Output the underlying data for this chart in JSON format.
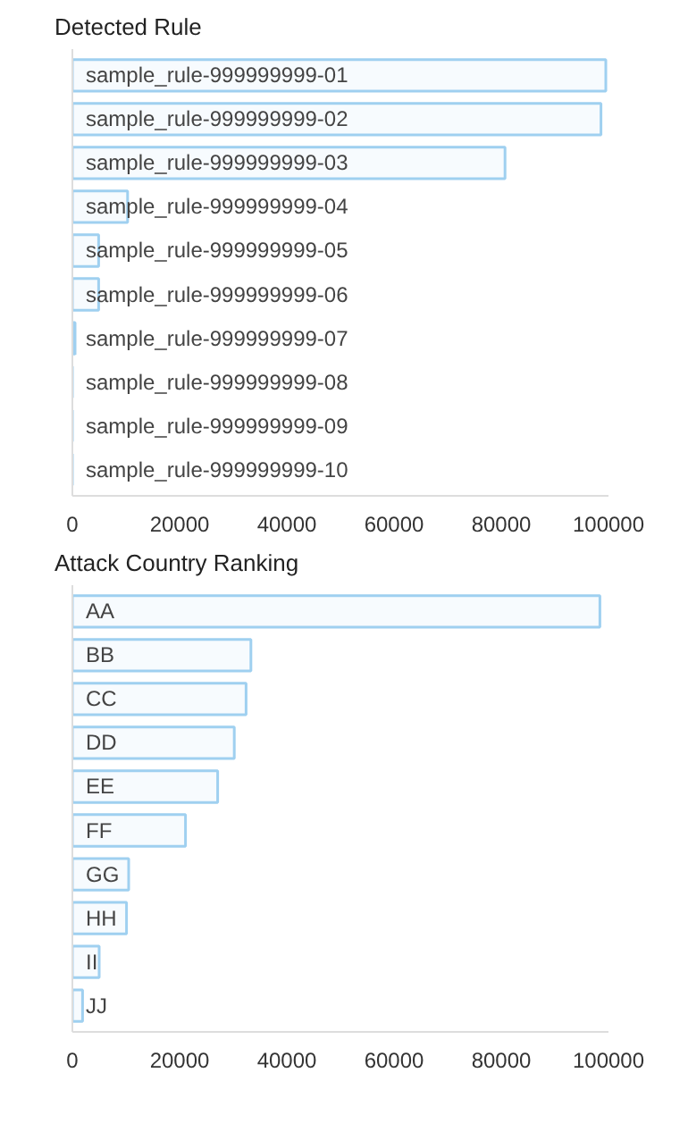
{
  "chart_data": [
    {
      "type": "bar",
      "orientation": "horizontal",
      "title": "Detected Rule",
      "categories": [
        "sample_rule-999999999-01",
        "sample_rule-999999999-02",
        "sample_rule-999999999-03",
        "sample_rule-999999999-04",
        "sample_rule-999999999-05",
        "sample_rule-999999999-06",
        "sample_rule-999999999-07",
        "sample_rule-999999999-08",
        "sample_rule-999999999-09",
        "sample_rule-999999999-10"
      ],
      "values": [
        99500,
        98600,
        80700,
        10300,
        4900,
        4900,
        500,
        0,
        0,
        0
      ],
      "color": "#9fd0f0",
      "xlim": [
        0,
        100000
      ],
      "xticks": [
        0,
        20000,
        40000,
        60000,
        80000,
        100000
      ]
    },
    {
      "type": "bar",
      "orientation": "horizontal",
      "title": "Attack Country Ranking",
      "categories": [
        "AA",
        "BB",
        "CC",
        "DD",
        "EE",
        "FF",
        "GG",
        "HH",
        "II",
        "JJ"
      ],
      "values": [
        98400,
        33300,
        32400,
        30200,
        27100,
        21100,
        10500,
        10100,
        5000,
        1900
      ],
      "color": "#9fd0f0",
      "xlim": [
        0,
        100000
      ],
      "xticks": [
        0,
        20000,
        40000,
        60000,
        80000,
        100000
      ]
    }
  ]
}
